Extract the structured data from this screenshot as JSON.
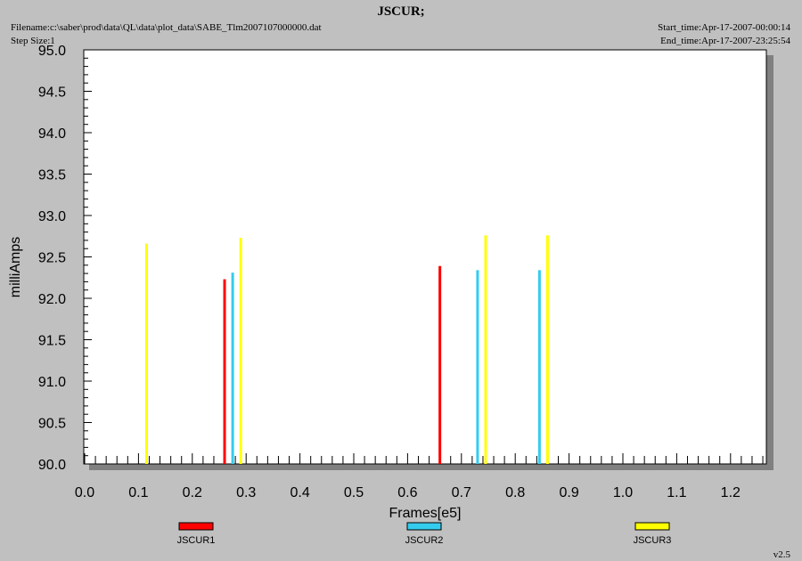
{
  "header": {
    "title": "JSCUR;",
    "filename": "Filename:c:\\saber\\prod\\data\\QL\\data\\plot_data\\SABE_Tlm2007107000000.dat",
    "step_size": "Step Size:1",
    "start_time": "Start_time:Apr-17-2007-00:00:14",
    "end_time": "End_time:Apr-17-2007-23:25:54",
    "version": "v2.5"
  },
  "chart_data": {
    "type": "bar",
    "title": "JSCUR;",
    "xlabel": "Frames[e5]",
    "ylabel": "milliAmps",
    "xlim": [
      0.0,
      1.27
    ],
    "ylim": [
      90.0,
      95.0
    ],
    "x_ticks": [
      "0.0",
      "0.1",
      "0.2",
      "0.3",
      "0.4",
      "0.5",
      "0.6",
      "0.7",
      "0.8",
      "0.9",
      "1.0",
      "1.1",
      "1.2"
    ],
    "y_ticks": [
      "90.0",
      "90.5",
      "91.0",
      "91.5",
      "92.0",
      "92.5",
      "93.0",
      "93.5",
      "94.0",
      "94.5",
      "95.0"
    ],
    "grid": false,
    "legend_position": "bottom",
    "series": [
      {
        "name": "JSCUR1",
        "color": "#ff0000",
        "points": [
          [
            0.26,
            92.23
          ],
          [
            0.66,
            92.39
          ]
        ]
      },
      {
        "name": "JSCUR2",
        "color": "#33ccee",
        "points": [
          [
            0.275,
            92.31
          ],
          [
            0.73,
            92.34
          ],
          [
            0.845,
            92.34
          ]
        ]
      },
      {
        "name": "JSCUR3",
        "color": "#ffff00",
        "points": [
          [
            0.115,
            92.66
          ],
          [
            0.29,
            92.73
          ],
          [
            0.745,
            92.76
          ],
          [
            0.86,
            92.76
          ]
        ]
      }
    ]
  }
}
